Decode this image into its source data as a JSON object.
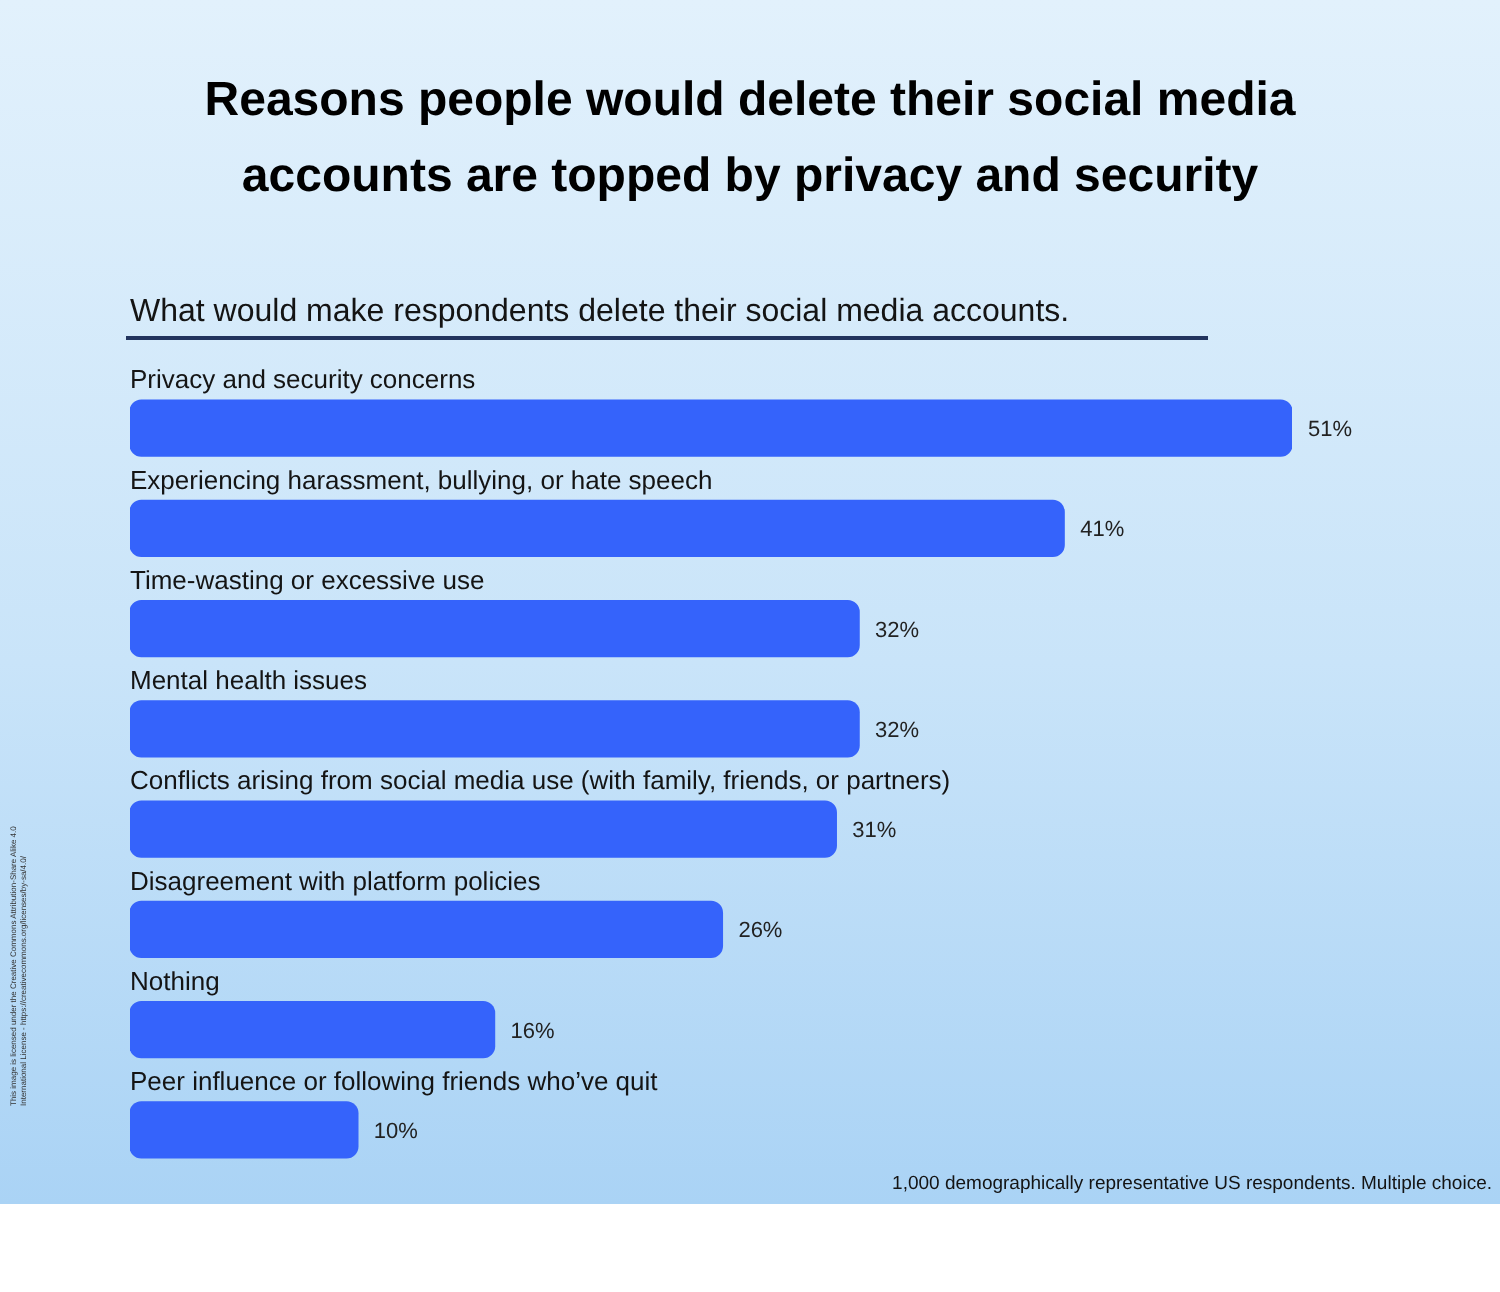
{
  "chart_data": {
    "type": "bar",
    "orientation": "horizontal",
    "title": "Reasons people would delete their social media accounts are topped by privacy and security",
    "subtitle": "What would make respondents delete their social media accounts.",
    "categories": [
      "Privacy and security concerns",
      "Experiencing harassment, bullying, or hate speech",
      "Time-wasting or excessive use",
      "Mental health issues",
      "Conflicts arising from social media use (with family, friends, or partners)",
      "Disagreement with platform policies",
      "Nothing",
      "Peer influence or following friends who’ve quit"
    ],
    "values": [
      51,
      41,
      32,
      32,
      31,
      26,
      16,
      10
    ],
    "value_labels": [
      "51%",
      "41%",
      "32%",
      "32%",
      "31%",
      "26%",
      "16%",
      "10%"
    ],
    "color": "#3563fb",
    "annotations": [
      "1,000 demographically representative US respondents. Multiple choice.",
      "This image is licensed under the Creative Commons Attribution-Share Alike 4.0 International License - https://creativecommons.org/licenses/by-sa/4.0/"
    ]
  }
}
